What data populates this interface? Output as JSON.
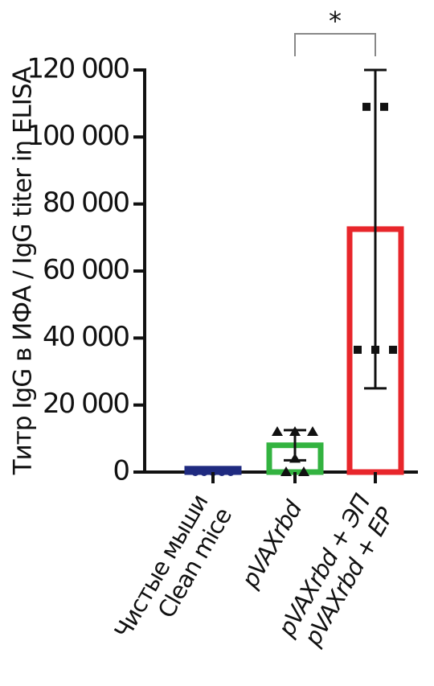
{
  "chart_data": {
    "type": "bar",
    "y_label": "Титр IgG в ИФА / IgG titer in ELISA",
    "categories": [
      [
        "Чистые мыши",
        "Clean mice"
      ],
      [
        "pVAXrbd"
      ],
      [
        "pVAXrbd + ЭП",
        "pVAXrbd + EP"
      ]
    ],
    "values": [
      1000,
      8000,
      72500
    ],
    "errors": [
      0,
      4500,
      47500
    ],
    "points": [
      [
        0,
        0,
        0,
        0,
        0
      ],
      [
        12000,
        12000,
        12000,
        4000,
        0,
        0
      ],
      [
        109000,
        109000,
        36500,
        36500,
        36500
      ]
    ],
    "colors": [
      "#1f2a80",
      "#33b340",
      "#e8262b"
    ],
    "markers": [
      "circle",
      "triangle",
      "square"
    ],
    "ylim": [
      0,
      120000
    ],
    "yticks": [
      0,
      {
        "value": 20000,
        "label": "20 000"
      },
      {
        "value": 40000,
        "label": "40 000"
      },
      {
        "value": 60000,
        "label": "60 000"
      },
      {
        "value": 80000,
        "label": "80 000"
      },
      {
        "value": 100000,
        "label": "100 000"
      },
      {
        "value": 120000,
        "label": "120 000"
      }
    ],
    "annotations": [
      {
        "text": "*"
      }
    ]
  }
}
